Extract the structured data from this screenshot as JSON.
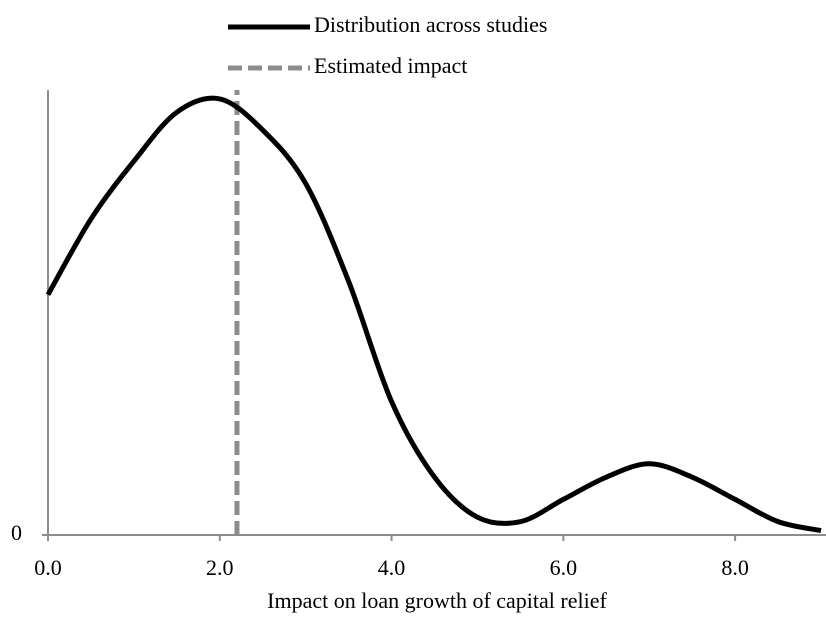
{
  "chart_data": {
    "type": "line",
    "x": [
      0,
      0.5,
      1.0,
      1.5,
      2.0,
      2.5,
      3.0,
      3.5,
      4.0,
      4.5,
      5.0,
      5.5,
      6.0,
      6.5,
      7.0,
      7.5,
      8.0,
      8.5,
      9.0
    ],
    "series": [
      {
        "name": "Distribution across studies",
        "color": "#000000",
        "values": [
          0.54,
          0.71,
          0.84,
          0.95,
          0.98,
          0.91,
          0.79,
          0.57,
          0.3,
          0.13,
          0.04,
          0.03,
          0.08,
          0.13,
          0.16,
          0.13,
          0.08,
          0.03,
          0.01
        ]
      }
    ],
    "vline": {
      "name": "Estimated impact",
      "color": "#8c8c8c",
      "x": 2.2
    },
    "x_label": "Impact on loan growth of capital relief",
    "xlim": [
      0,
      9
    ],
    "xticks": [
      {
        "value": 0,
        "label": "0.0"
      },
      {
        "value": 2,
        "label": "2.0"
      },
      {
        "value": 4,
        "label": "4.0"
      },
      {
        "value": 6,
        "label": "6.0"
      },
      {
        "value": 8,
        "label": "8.0"
      }
    ],
    "ylim": [
      0,
      1
    ],
    "yticks": [
      0
    ],
    "grid": false
  }
}
